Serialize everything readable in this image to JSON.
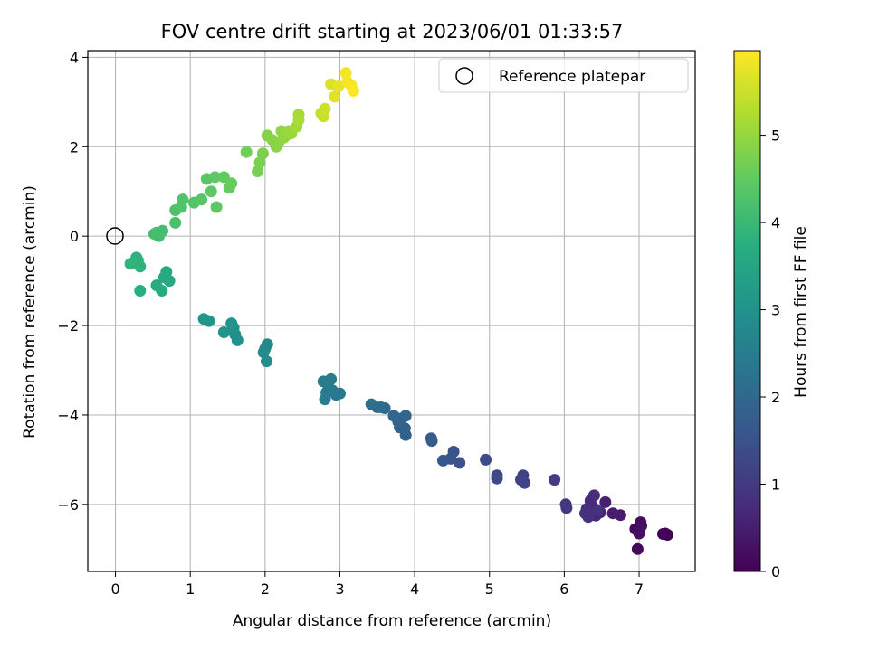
{
  "chart_data": {
    "type": "scatter",
    "title": "FOV centre drift starting at 2023/06/01 01:33:57",
    "xlabel": "Angular distance from reference (arcmin)",
    "ylabel": "Rotation from reference (arcmin)",
    "xlim": [
      -0.37,
      7.75
    ],
    "ylim": [
      -7.5,
      4.15
    ],
    "xticks": [
      0,
      1,
      2,
      3,
      4,
      5,
      6,
      7
    ],
    "yticks": [
      -6,
      -4,
      -2,
      0,
      2,
      4
    ],
    "grid": true,
    "legend": {
      "placement": "top-right",
      "entries": [
        {
          "label": "Reference platepar",
          "marker": "open-circle",
          "x": 0,
          "y": 0
        }
      ]
    },
    "colorbar": {
      "label": "Hours from first FF file",
      "colormap": "viridis",
      "range": [
        0,
        5.97
      ],
      "ticks": [
        0,
        1,
        2,
        3,
        4,
        5
      ]
    },
    "points": [
      {
        "x": 7.35,
        "y": -6.65,
        "t": 0.0
      },
      {
        "x": 7.38,
        "y": -6.68,
        "t": 0.02
      },
      {
        "x": 7.32,
        "y": -6.66,
        "t": 0.04
      },
      {
        "x": 6.98,
        "y": -7.0,
        "t": 0.1
      },
      {
        "x": 6.95,
        "y": -6.55,
        "t": 0.15
      },
      {
        "x": 7.02,
        "y": -6.4,
        "t": 0.2
      },
      {
        "x": 7.03,
        "y": -6.48,
        "t": 0.22
      },
      {
        "x": 7.0,
        "y": -6.65,
        "t": 0.25
      },
      {
        "x": 6.75,
        "y": -6.24,
        "t": 0.45
      },
      {
        "x": 6.65,
        "y": -6.2,
        "t": 0.5
      },
      {
        "x": 6.55,
        "y": -5.95,
        "t": 0.55
      },
      {
        "x": 6.48,
        "y": -6.18,
        "t": 0.6
      },
      {
        "x": 6.42,
        "y": -6.25,
        "t": 0.65
      },
      {
        "x": 6.38,
        "y": -6.05,
        "t": 0.7
      },
      {
        "x": 6.35,
        "y": -5.92,
        "t": 0.72
      },
      {
        "x": 6.4,
        "y": -5.8,
        "t": 0.75
      },
      {
        "x": 6.3,
        "y": -6.1,
        "t": 0.78
      },
      {
        "x": 6.32,
        "y": -6.28,
        "t": 0.8
      },
      {
        "x": 6.45,
        "y": -6.15,
        "t": 0.82
      },
      {
        "x": 6.28,
        "y": -6.2,
        "t": 0.85
      },
      {
        "x": 6.02,
        "y": -6.0,
        "t": 0.95
      },
      {
        "x": 6.03,
        "y": -6.08,
        "t": 0.97
      },
      {
        "x": 5.87,
        "y": -5.45,
        "t": 1.05
      },
      {
        "x": 5.45,
        "y": -5.35,
        "t": 1.15
      },
      {
        "x": 5.42,
        "y": -5.45,
        "t": 1.18
      },
      {
        "x": 5.47,
        "y": -5.52,
        "t": 1.2
      },
      {
        "x": 5.1,
        "y": -5.35,
        "t": 1.3
      },
      {
        "x": 5.1,
        "y": -5.42,
        "t": 1.32
      },
      {
        "x": 4.95,
        "y": -5.0,
        "t": 1.4
      },
      {
        "x": 4.6,
        "y": -5.07,
        "t": 1.5
      },
      {
        "x": 4.52,
        "y": -4.82,
        "t": 1.55
      },
      {
        "x": 4.48,
        "y": -4.98,
        "t": 1.58
      },
      {
        "x": 4.38,
        "y": -5.02,
        "t": 1.62
      },
      {
        "x": 4.22,
        "y": -4.52,
        "t": 1.7
      },
      {
        "x": 4.23,
        "y": -4.58,
        "t": 1.72
      },
      {
        "x": 3.88,
        "y": -4.45,
        "t": 1.85
      },
      {
        "x": 3.87,
        "y": -4.3,
        "t": 1.87
      },
      {
        "x": 3.8,
        "y": -4.28,
        "t": 1.89
      },
      {
        "x": 3.78,
        "y": -4.15,
        "t": 1.91
      },
      {
        "x": 3.82,
        "y": -4.08,
        "t": 1.93
      },
      {
        "x": 3.88,
        "y": -4.02,
        "t": 1.95
      },
      {
        "x": 3.72,
        "y": -4.02,
        "t": 1.98
      },
      {
        "x": 3.6,
        "y": -3.85,
        "t": 2.05
      },
      {
        "x": 3.55,
        "y": -3.83,
        "t": 2.08
      },
      {
        "x": 3.5,
        "y": -3.83,
        "t": 2.1
      },
      {
        "x": 3.42,
        "y": -3.76,
        "t": 2.15
      },
      {
        "x": 3.0,
        "y": -3.52,
        "t": 2.35
      },
      {
        "x": 2.95,
        "y": -3.55,
        "t": 2.38
      },
      {
        "x": 2.9,
        "y": -3.45,
        "t": 2.4
      },
      {
        "x": 2.85,
        "y": -3.4,
        "t": 2.42
      },
      {
        "x": 2.82,
        "y": -3.5,
        "t": 2.44
      },
      {
        "x": 2.8,
        "y": -3.65,
        "t": 2.46
      },
      {
        "x": 2.78,
        "y": -3.25,
        "t": 2.48
      },
      {
        "x": 2.88,
        "y": -3.2,
        "t": 2.5
      },
      {
        "x": 2.03,
        "y": -2.42,
        "t": 2.8
      },
      {
        "x": 2.0,
        "y": -2.52,
        "t": 2.82
      },
      {
        "x": 1.98,
        "y": -2.6,
        "t": 2.84
      },
      {
        "x": 2.02,
        "y": -2.8,
        "t": 2.86
      },
      {
        "x": 1.63,
        "y": -2.33,
        "t": 2.95
      },
      {
        "x": 1.6,
        "y": -2.2,
        "t": 2.97
      },
      {
        "x": 1.58,
        "y": -2.05,
        "t": 2.99
      },
      {
        "x": 1.55,
        "y": -1.95,
        "t": 3.01
      },
      {
        "x": 1.45,
        "y": -2.15,
        "t": 3.05
      },
      {
        "x": 1.25,
        "y": -1.9,
        "t": 3.1
      },
      {
        "x": 1.18,
        "y": -1.85,
        "t": 3.12
      },
      {
        "x": 0.72,
        "y": -1.0,
        "t": 3.6
      },
      {
        "x": 0.68,
        "y": -0.8,
        "t": 3.62
      },
      {
        "x": 0.65,
        "y": -0.92,
        "t": 3.64
      },
      {
        "x": 0.62,
        "y": -1.22,
        "t": 3.66
      },
      {
        "x": 0.55,
        "y": -1.1,
        "t": 3.68
      },
      {
        "x": 0.33,
        "y": -1.22,
        "t": 3.75
      },
      {
        "x": 0.3,
        "y": -0.55,
        "t": 3.8
      },
      {
        "x": 0.28,
        "y": -0.48,
        "t": 3.82
      },
      {
        "x": 0.33,
        "y": -0.68,
        "t": 3.84
      },
      {
        "x": 0.2,
        "y": -0.62,
        "t": 3.86
      },
      {
        "x": 0.52,
        "y": 0.05,
        "t": 4.1
      },
      {
        "x": 0.58,
        "y": 0.0,
        "t": 4.12
      },
      {
        "x": 0.63,
        "y": 0.12,
        "t": 4.14
      },
      {
        "x": 0.55,
        "y": 0.08,
        "t": 4.16
      },
      {
        "x": 0.8,
        "y": 0.3,
        "t": 4.22
      },
      {
        "x": 0.8,
        "y": 0.58,
        "t": 4.25
      },
      {
        "x": 0.88,
        "y": 0.65,
        "t": 4.28
      },
      {
        "x": 0.9,
        "y": 0.82,
        "t": 4.3
      },
      {
        "x": 1.05,
        "y": 0.75,
        "t": 4.35
      },
      {
        "x": 1.15,
        "y": 0.82,
        "t": 4.38
      },
      {
        "x": 1.22,
        "y": 1.28,
        "t": 4.42
      },
      {
        "x": 1.28,
        "y": 1.0,
        "t": 4.44
      },
      {
        "x": 1.35,
        "y": 0.65,
        "t": 4.46
      },
      {
        "x": 1.33,
        "y": 1.32,
        "t": 4.48
      },
      {
        "x": 1.45,
        "y": 1.32,
        "t": 4.5
      },
      {
        "x": 1.52,
        "y": 1.08,
        "t": 4.53
      },
      {
        "x": 1.55,
        "y": 1.18,
        "t": 4.55
      },
      {
        "x": 1.75,
        "y": 1.88,
        "t": 4.65
      },
      {
        "x": 1.9,
        "y": 1.45,
        "t": 4.72
      },
      {
        "x": 1.93,
        "y": 1.65,
        "t": 4.74
      },
      {
        "x": 1.97,
        "y": 1.85,
        "t": 4.76
      },
      {
        "x": 2.03,
        "y": 2.25,
        "t": 4.85
      },
      {
        "x": 2.1,
        "y": 2.15,
        "t": 4.88
      },
      {
        "x": 2.15,
        "y": 2.0,
        "t": 4.9
      },
      {
        "x": 2.18,
        "y": 2.1,
        "t": 4.92
      },
      {
        "x": 2.22,
        "y": 2.35,
        "t": 4.95
      },
      {
        "x": 2.25,
        "y": 2.2,
        "t": 4.97
      },
      {
        "x": 2.28,
        "y": 2.25,
        "t": 4.99
      },
      {
        "x": 2.32,
        "y": 2.35,
        "t": 5.02
      },
      {
        "x": 2.35,
        "y": 2.3,
        "t": 5.05
      },
      {
        "x": 2.42,
        "y": 2.45,
        "t": 5.1
      },
      {
        "x": 2.45,
        "y": 2.72,
        "t": 5.15
      },
      {
        "x": 2.45,
        "y": 2.6,
        "t": 5.18
      },
      {
        "x": 2.75,
        "y": 2.75,
        "t": 5.45
      },
      {
        "x": 2.78,
        "y": 2.68,
        "t": 5.48
      },
      {
        "x": 2.8,
        "y": 2.85,
        "t": 5.5
      },
      {
        "x": 2.88,
        "y": 3.4,
        "t": 5.65
      },
      {
        "x": 2.93,
        "y": 3.12,
        "t": 5.7
      },
      {
        "x": 2.98,
        "y": 3.35,
        "t": 5.75
      },
      {
        "x": 3.08,
        "y": 3.65,
        "t": 5.85
      },
      {
        "x": 3.1,
        "y": 3.45,
        "t": 5.88
      },
      {
        "x": 3.15,
        "y": 3.38,
        "t": 5.92
      },
      {
        "x": 3.18,
        "y": 3.25,
        "t": 5.95
      }
    ]
  }
}
